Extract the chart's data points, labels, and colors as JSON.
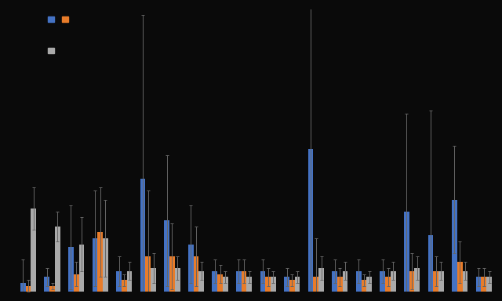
{
  "background_color": "#0a0a0a",
  "bar_color_blue": "#4472c4",
  "bar_color_orange": "#e87c2a",
  "bar_color_gray": "#aaaaaa",
  "bar_width": 0.22,
  "groups": [
    {
      "blue": 3,
      "blue_err": 8,
      "orange": 2,
      "orange_err": 2,
      "gray": 28,
      "gray_err": 7
    },
    {
      "blue": 5,
      "blue_err": 3,
      "orange": 2,
      "orange_err": 1,
      "gray": 22,
      "gray_err": 5
    },
    {
      "blue": 15,
      "blue_err": 14,
      "orange": 6,
      "orange_err": 4,
      "gray": 16,
      "gray_err": 9
    },
    {
      "blue": 18,
      "blue_err": 16,
      "orange": 20,
      "orange_err": 15,
      "gray": 18,
      "gray_err": 13
    },
    {
      "blue": 7,
      "blue_err": 5,
      "orange": 4,
      "orange_err": 2,
      "gray": 7,
      "gray_err": 3
    },
    {
      "blue": 38,
      "blue_err": 55,
      "orange": 12,
      "orange_err": 22,
      "gray": 8,
      "gray_err": 5
    },
    {
      "blue": 24,
      "blue_err": 22,
      "orange": 12,
      "orange_err": 11,
      "gray": 8,
      "gray_err": 4
    },
    {
      "blue": 16,
      "blue_err": 13,
      "orange": 12,
      "orange_err": 10,
      "gray": 7,
      "gray_err": 3
    },
    {
      "blue": 7,
      "blue_err": 4,
      "orange": 6,
      "orange_err": 3,
      "gray": 5,
      "gray_err": 2
    },
    {
      "blue": 7,
      "blue_err": 4,
      "orange": 7,
      "orange_err": 4,
      "gray": 5,
      "gray_err": 2
    },
    {
      "blue": 7,
      "blue_err": 4,
      "orange": 5,
      "orange_err": 3,
      "gray": 5,
      "gray_err": 2
    },
    {
      "blue": 5,
      "blue_err": 3,
      "orange": 4,
      "orange_err": 2,
      "gray": 5,
      "gray_err": 2
    },
    {
      "blue": 48,
      "blue_err": 75,
      "orange": 5,
      "orange_err": 13,
      "gray": 8,
      "gray_err": 4
    },
    {
      "blue": 7,
      "blue_err": 4,
      "orange": 5,
      "orange_err": 3,
      "gray": 7,
      "gray_err": 3
    },
    {
      "blue": 7,
      "blue_err": 4,
      "orange": 4,
      "orange_err": 2,
      "gray": 5,
      "gray_err": 2
    },
    {
      "blue": 7,
      "blue_err": 4,
      "orange": 5,
      "orange_err": 3,
      "gray": 7,
      "gray_err": 3
    },
    {
      "blue": 27,
      "blue_err": 33,
      "orange": 7,
      "orange_err": 6,
      "gray": 8,
      "gray_err": 4
    },
    {
      "blue": 19,
      "blue_err": 42,
      "orange": 7,
      "orange_err": 5,
      "gray": 7,
      "gray_err": 3
    },
    {
      "blue": 31,
      "blue_err": 18,
      "orange": 10,
      "orange_err": 7,
      "gray": 7,
      "gray_err": 3
    },
    {
      "blue": 5,
      "blue_err": 3,
      "orange": 5,
      "orange_err": 3,
      "gray": 5,
      "gray_err": 2
    }
  ],
  "ylim": [
    0,
    95
  ],
  "tick_color": "#666666",
  "error_color": "#666666",
  "error_cap_size": 1.5,
  "legend_patch_size": 8
}
